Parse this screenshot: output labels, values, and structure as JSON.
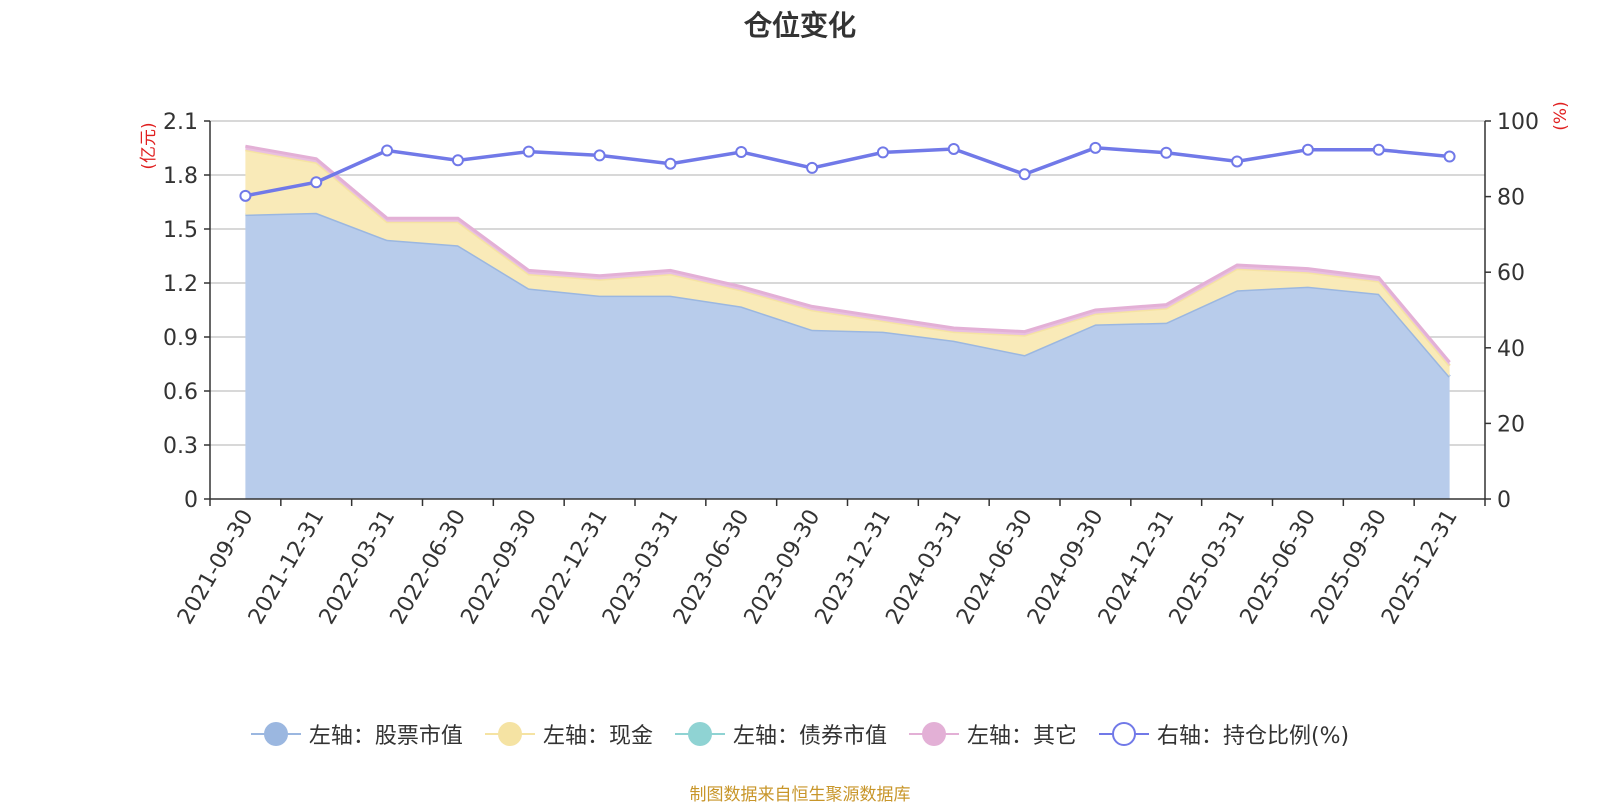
{
  "chart_data": {
    "type": "area",
    "title": "仓位变化",
    "categories": [
      "2021-09-30",
      "2021-12-31",
      "2022-03-31",
      "2022-06-30",
      "2022-09-30",
      "2022-12-31",
      "2023-03-31",
      "2023-06-30",
      "2023-09-30",
      "2023-12-31",
      "2024-03-31",
      "2024-06-30",
      "2024-09-30",
      "2024-12-31",
      "2025-03-31",
      "2025-06-30",
      "2025-09-30",
      "2025-12-31"
    ],
    "left_axis": {
      "label": "(亿元)",
      "ylim": [
        0,
        2.1
      ],
      "ticks": [
        "0",
        "0.3",
        "0.6",
        "0.9",
        "1.2",
        "1.5",
        "1.8",
        "2.1"
      ]
    },
    "right_axis": {
      "label": "(%)",
      "ylim": [
        0,
        100
      ],
      "ticks": [
        "0",
        "20",
        "40",
        "60",
        "80",
        "100"
      ]
    },
    "series": [
      {
        "name": "左轴：股票市值",
        "axis": "left",
        "color": "#9bb7e0",
        "fill": "#b8cceb",
        "values": [
          1.58,
          1.59,
          1.44,
          1.41,
          1.17,
          1.13,
          1.13,
          1.07,
          0.94,
          0.93,
          0.88,
          0.8,
          0.97,
          0.98,
          1.16,
          1.18,
          1.14,
          0.68
        ]
      },
      {
        "name": "左轴：现金",
        "axis": "left",
        "color": "#f5e3a3",
        "fill": "#f9eab8",
        "values": [
          0.36,
          0.28,
          0.1,
          0.13,
          0.08,
          0.09,
          0.12,
          0.09,
          0.11,
          0.06,
          0.05,
          0.11,
          0.06,
          0.08,
          0.12,
          0.08,
          0.07,
          0.06
        ]
      },
      {
        "name": "左轴：债券市值",
        "axis": "left",
        "color": "#8fd3d3",
        "fill": "#8fd3d3",
        "values": [
          0,
          0,
          0,
          0,
          0,
          0,
          0,
          0,
          0,
          0,
          0,
          0,
          0,
          0,
          0,
          0,
          0,
          0
        ]
      },
      {
        "name": "左轴：其它",
        "axis": "left",
        "color": "#e3b0d6",
        "fill": "#e9bfe0",
        "values": [
          0.02,
          0.02,
          0.02,
          0.02,
          0.02,
          0.02,
          0.02,
          0.02,
          0.02,
          0.02,
          0.02,
          0.02,
          0.02,
          0.02,
          0.02,
          0.02,
          0.02,
          0.02
        ]
      },
      {
        "name": "右轴：持仓比例(%)",
        "axis": "right",
        "color": "#7179e8",
        "values": [
          80.2,
          83.8,
          92.2,
          89.6,
          91.9,
          90.9,
          88.7,
          91.8,
          87.6,
          91.7,
          92.6,
          85.9,
          92.9,
          91.6,
          89.3,
          92.4,
          92.4,
          90.6
        ]
      }
    ],
    "legend_position": "bottom"
  },
  "source": "制图数据来自恒生聚源数据库"
}
